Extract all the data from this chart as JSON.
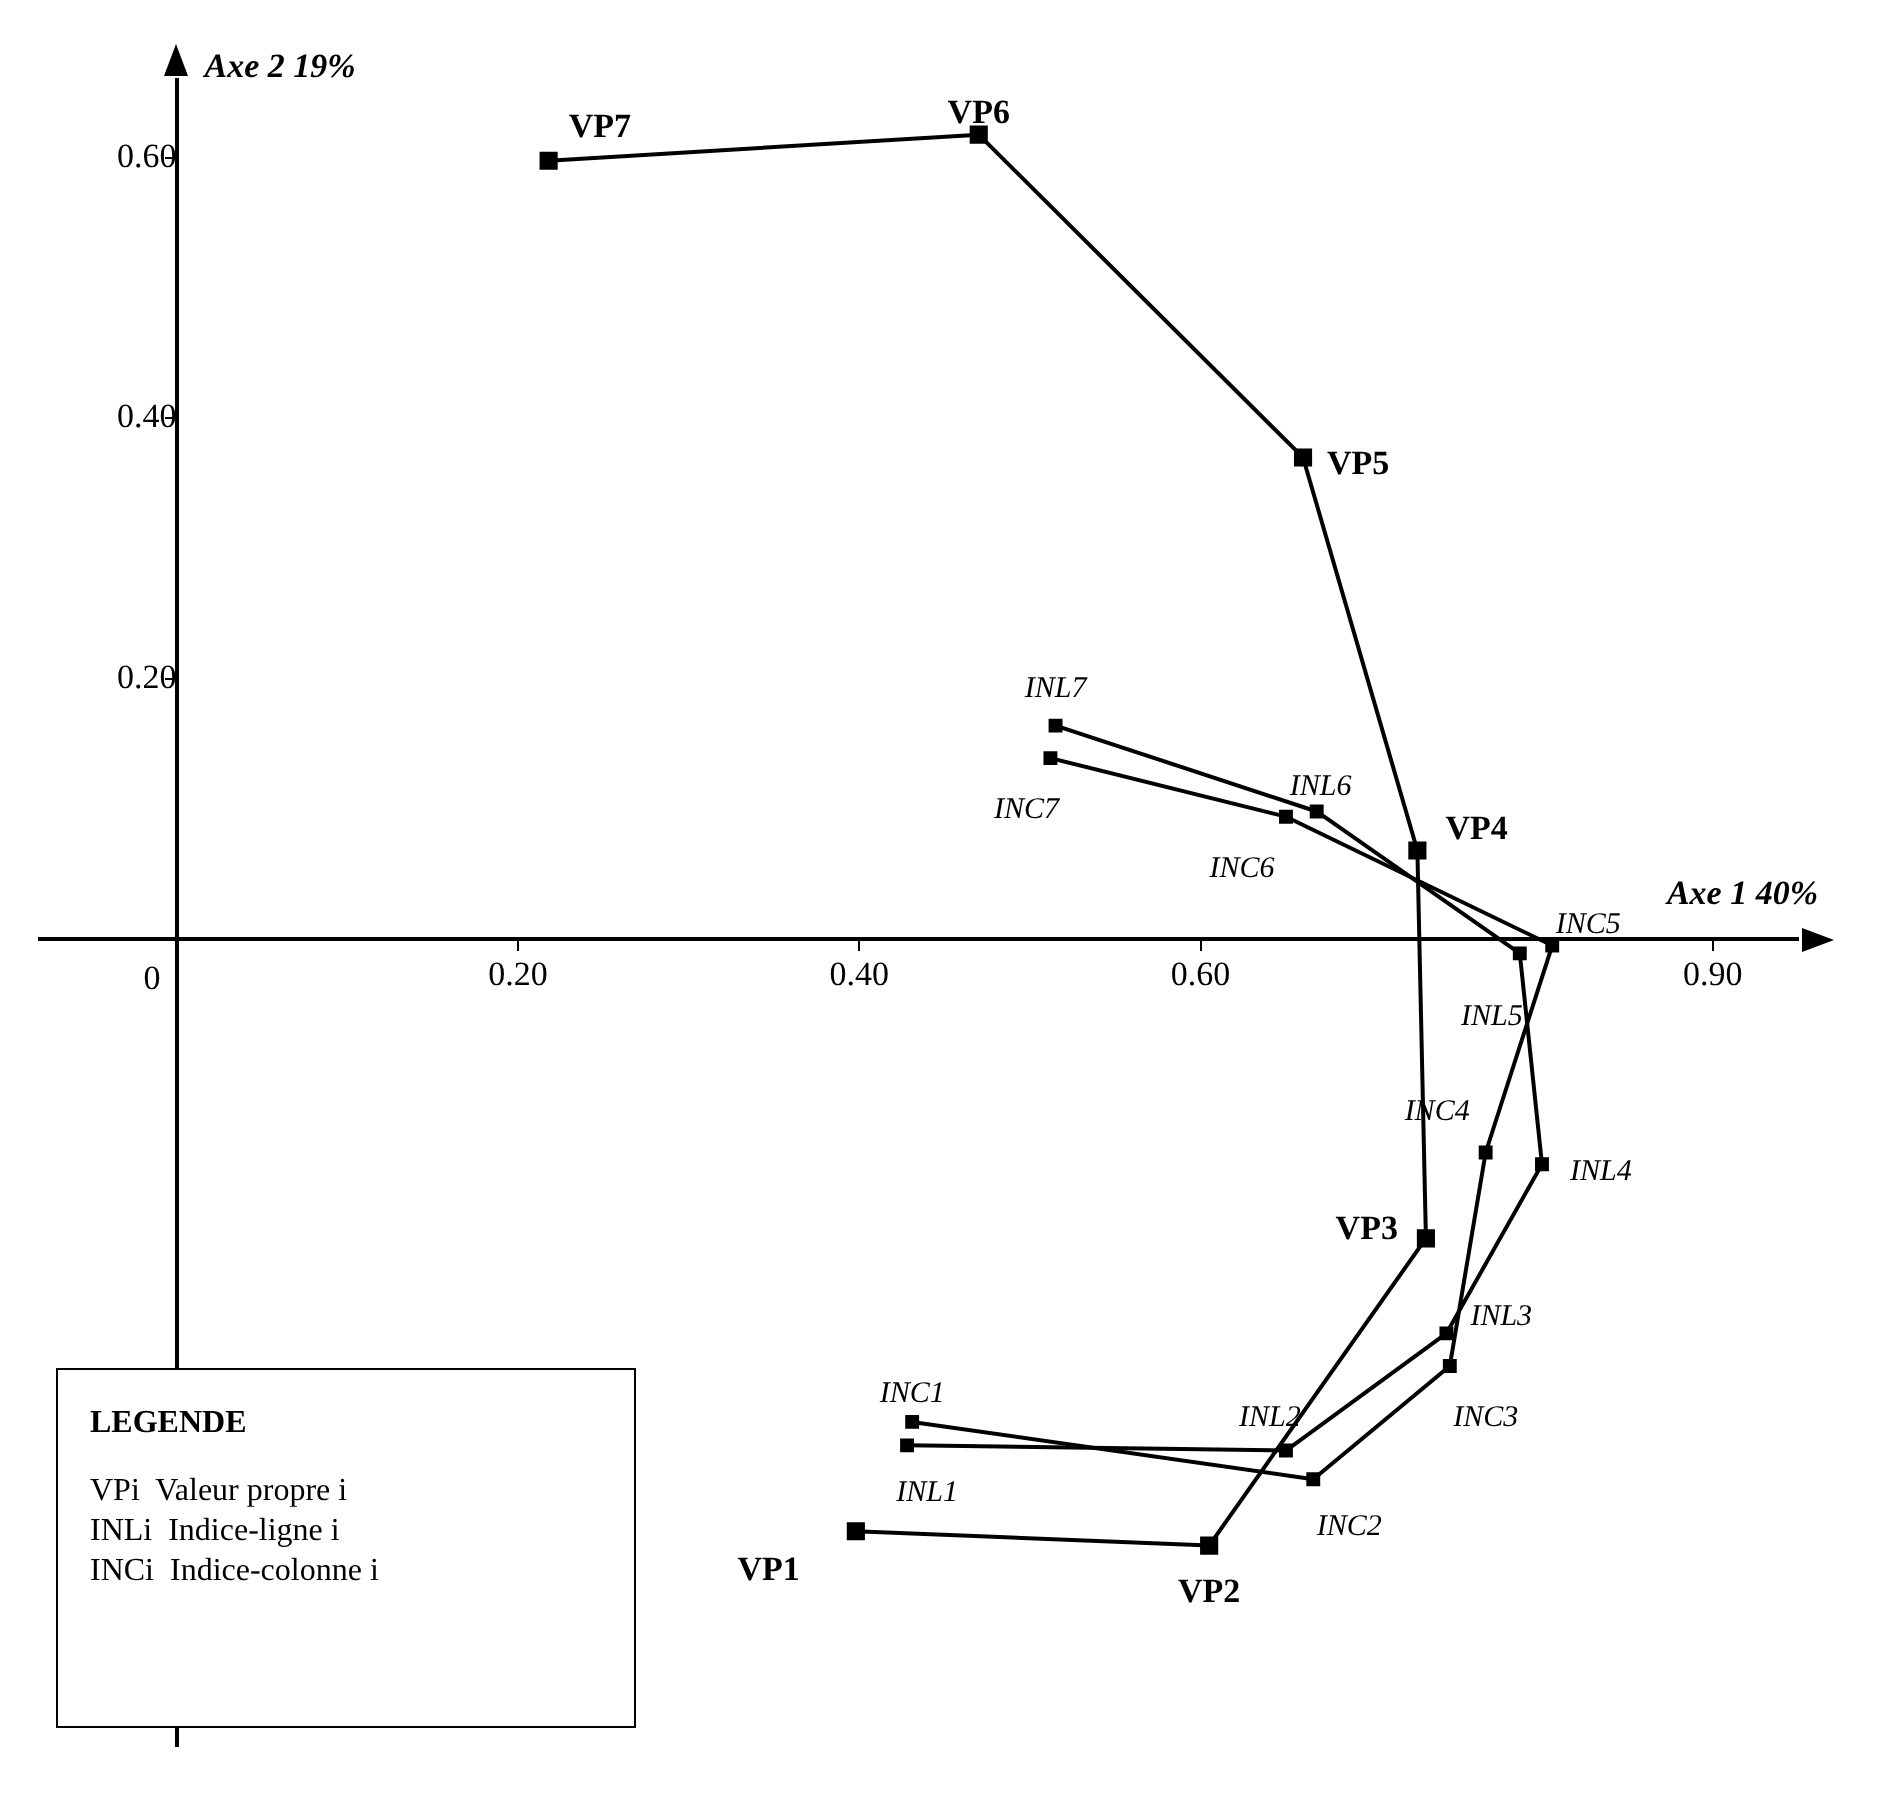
{
  "chart_data": {
    "type": "line",
    "xlabel": "Axe 1 40%",
    "ylabel": "Axe 2 19%",
    "xlim": [
      -0.08,
      0.95
    ],
    "ylim": [
      -0.62,
      0.66
    ],
    "xticks": [
      {
        "value": 0,
        "label": "0"
      },
      {
        "value": 0.2,
        "label": "0.20"
      },
      {
        "value": 0.4,
        "label": "0.40"
      },
      {
        "value": 0.6,
        "label": "0.60"
      },
      {
        "value": 0.9,
        "label": "0.90"
      }
    ],
    "yticks": [
      {
        "value": 0.2,
        "label": "0.20"
      },
      {
        "value": 0.4,
        "label": "0.40"
      },
      {
        "value": 0.6,
        "label": "0.60"
      }
    ],
    "grid": false,
    "legend": false,
    "marker": "square",
    "line_style": "solid",
    "series": [
      {
        "color": "#000000",
        "x": [
          0.398,
          0.605,
          0.732,
          0.727,
          0.66,
          0.47,
          0.218
        ],
        "values": [
          -0.455,
          -0.466,
          -0.23,
          0.068,
          0.37,
          0.618,
          0.598
        ]
      },
      {
        "color": "#000000",
        "x": [
          0.428,
          0.65,
          0.744,
          0.8,
          0.787,
          0.668,
          0.515
        ],
        "values": [
          -0.389,
          -0.393,
          -0.303,
          -0.173,
          -0.011,
          0.098,
          0.164
        ]
      },
      {
        "color": "#000000",
        "x": [
          0.431,
          0.666,
          0.746,
          0.767,
          0.806,
          0.65,
          0.512
        ],
        "values": [
          -0.371,
          -0.415,
          -0.328,
          -0.164,
          -0.005,
          0.094,
          0.139
        ]
      }
    ],
    "annotations": [
      {
        "text": "VP1",
        "x": 0.398,
        "y": -0.455
      },
      {
        "text": "VP2",
        "x": 0.605,
        "y": -0.466
      },
      {
        "text": "VP3",
        "x": 0.732,
        "y": -0.23
      },
      {
        "text": "VP4",
        "x": 0.727,
        "y": 0.068
      },
      {
        "text": "VP5",
        "x": 0.66,
        "y": 0.37
      },
      {
        "text": "VP6",
        "x": 0.47,
        "y": 0.618
      },
      {
        "text": "VP7",
        "x": 0.218,
        "y": 0.598
      },
      {
        "text": "INL1",
        "x": 0.428,
        "y": -0.389
      },
      {
        "text": "INL2",
        "x": 0.65,
        "y": -0.393
      },
      {
        "text": "INL3",
        "x": 0.744,
        "y": -0.303
      },
      {
        "text": "INL4",
        "x": 0.8,
        "y": -0.173
      },
      {
        "text": "INL5",
        "x": 0.787,
        "y": -0.011
      },
      {
        "text": "INL6",
        "x": 0.668,
        "y": 0.098
      },
      {
        "text": "INL7",
        "x": 0.515,
        "y": 0.164
      },
      {
        "text": "INC1",
        "x": 0.431,
        "y": -0.371
      },
      {
        "text": "INC2",
        "x": 0.666,
        "y": -0.415
      },
      {
        "text": "INC3",
        "x": 0.746,
        "y": -0.328
      },
      {
        "text": "INC4",
        "x": 0.767,
        "y": -0.164
      },
      {
        "text": "INC5",
        "x": 0.806,
        "y": -0.005
      },
      {
        "text": "INC6",
        "x": 0.65,
        "y": 0.094
      },
      {
        "text": "INC7",
        "x": 0.512,
        "y": 0.139
      },
      "LEGENDE",
      "VPi  Valeur propre i",
      "INLi  Indice-ligne i",
      "INCi  Indice-colonne i"
    ]
  }
}
